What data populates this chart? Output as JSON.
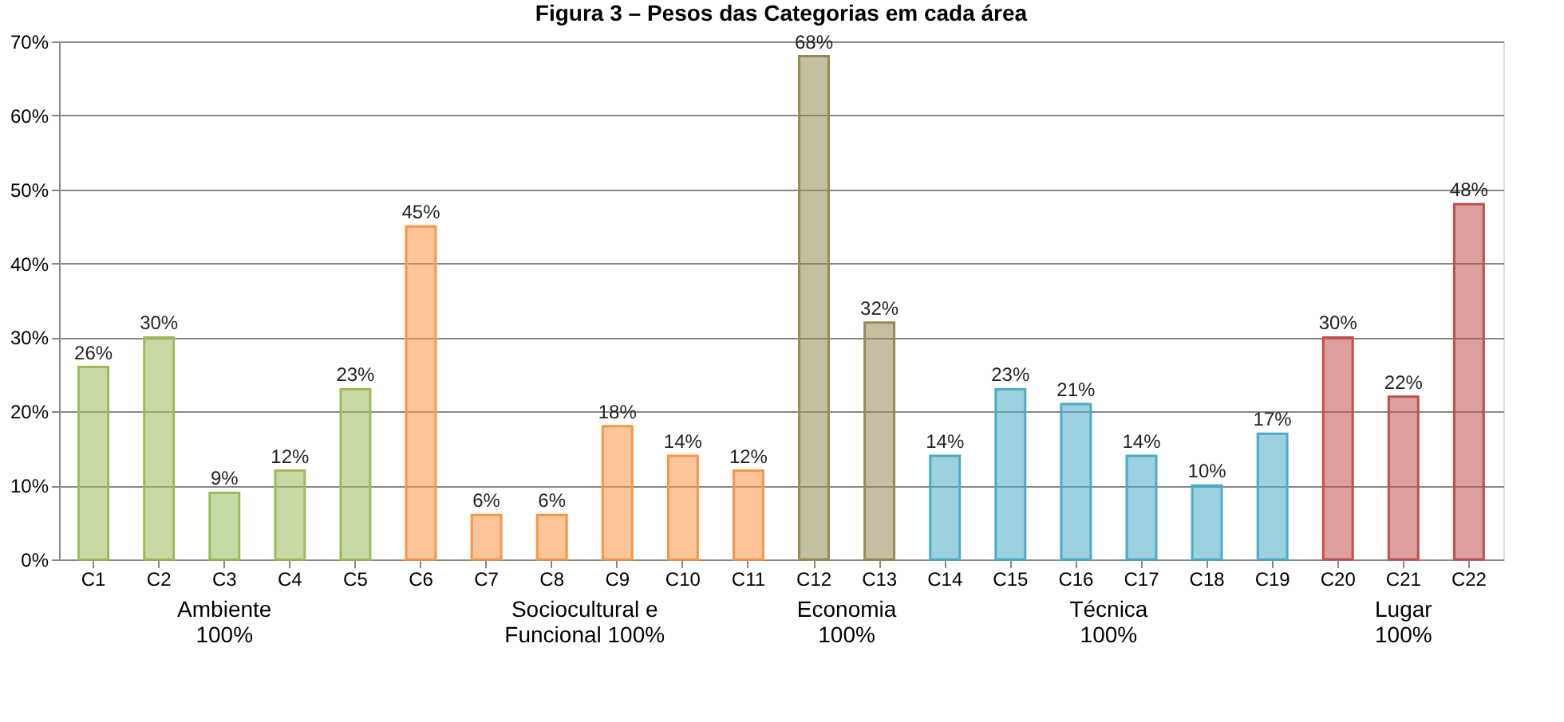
{
  "chart_data": {
    "type": "bar",
    "title": "Figura 3 – Pesos das Categorias em cada área",
    "categories": [
      "C1",
      "C2",
      "C3",
      "C4",
      "C5",
      "C6",
      "C7",
      "C8",
      "C9",
      "C10",
      "C11",
      "C12",
      "C13",
      "C14",
      "C15",
      "C16",
      "C17",
      "C18",
      "C19",
      "C20",
      "C21",
      "C22"
    ],
    "values": [
      26,
      30,
      9,
      12,
      23,
      45,
      6,
      6,
      18,
      14,
      12,
      68,
      32,
      14,
      23,
      21,
      14,
      10,
      17,
      30,
      22,
      48
    ],
    "value_labels": [
      "26%",
      "30%",
      "9%",
      "12%",
      "23%",
      "45%",
      "6%",
      "6%",
      "18%",
      "14%",
      "12%",
      "68%",
      "32%",
      "14%",
      "23%",
      "21%",
      "14%",
      "10%",
      "17%",
      "30%",
      "22%",
      "48%"
    ],
    "colors": [
      "#9bbb59",
      "#9bbb59",
      "#9bbb59",
      "#9bbb59",
      "#9bbb59",
      "#f79646",
      "#f79646",
      "#f79646",
      "#f79646",
      "#f79646",
      "#f79646",
      "#948a54",
      "#948a54",
      "#4bacc6",
      "#4bacc6",
      "#4bacc6",
      "#4bacc6",
      "#4bacc6",
      "#4bacc6",
      "#c0504d",
      "#c0504d",
      "#c0504d"
    ],
    "ylim": [
      0,
      70
    ],
    "yticks": [
      {
        "value": 0,
        "label": "0%"
      },
      {
        "value": 10,
        "label": "10%"
      },
      {
        "value": 20,
        "label": "20%"
      },
      {
        "value": 30,
        "label": "30%"
      },
      {
        "value": 40,
        "label": "40%"
      },
      {
        "value": 50,
        "label": "50%"
      },
      {
        "value": 60,
        "label": "60%"
      },
      {
        "value": 70,
        "label": "70%"
      }
    ],
    "grid": "y",
    "annotations": [
      "Ambiente\n100%",
      "Sociocultural e\nFuncional 100%",
      "Economia\n100%",
      "Técnica\n100%",
      "Lugar\n100%"
    ]
  }
}
